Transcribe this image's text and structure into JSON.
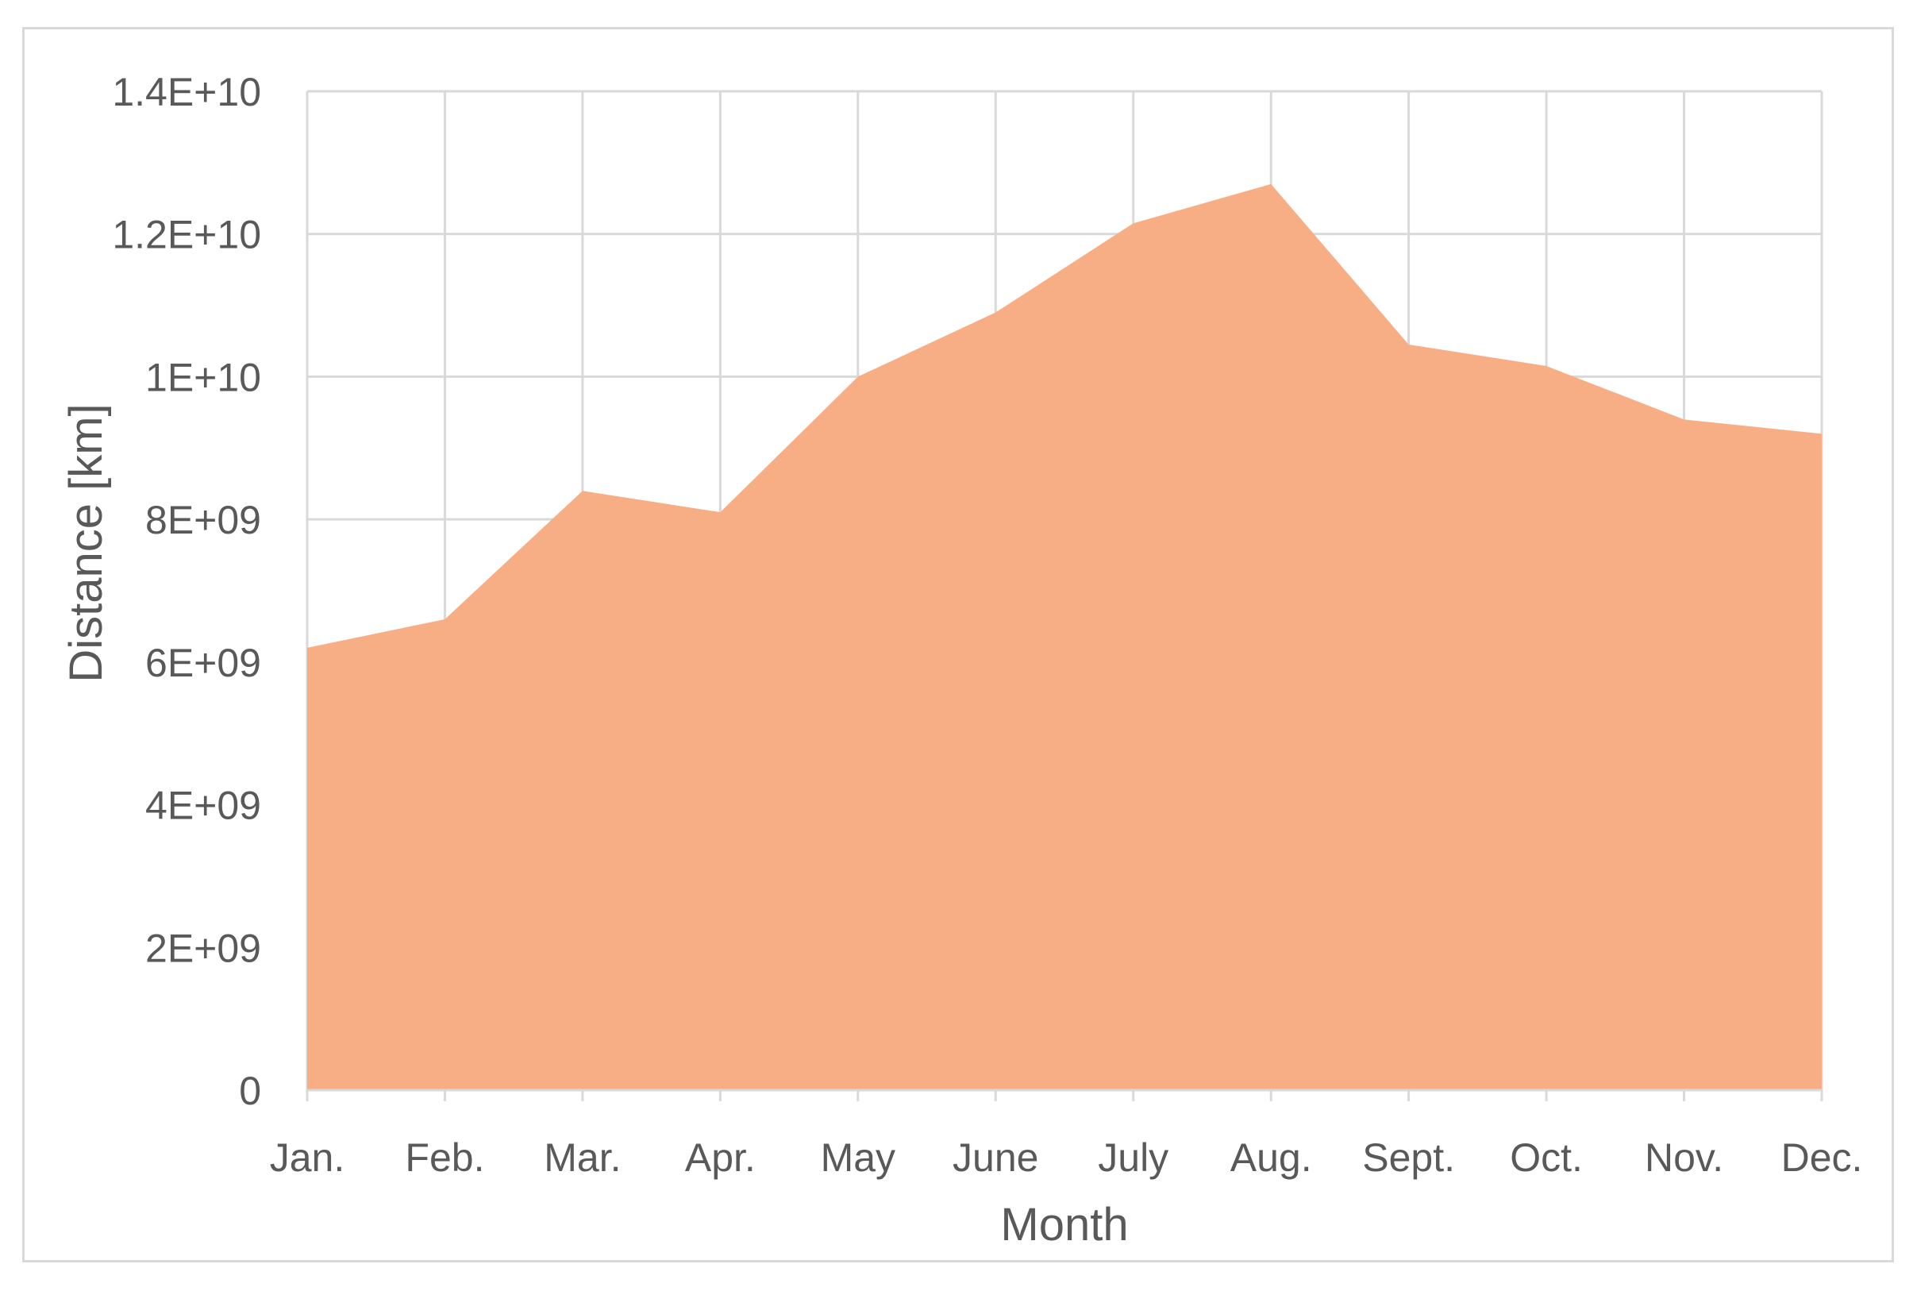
{
  "chart_data": {
    "type": "area",
    "xlabel": "Month",
    "ylabel": "Distance [km]",
    "categories": [
      "Jan.",
      "Feb.",
      "Mar.",
      "Apr.",
      "May",
      "June",
      "July",
      "Aug.",
      "Sept.",
      "Oct.",
      "Nov.",
      "Dec."
    ],
    "series": [
      {
        "values": [
          6200000000,
          6600000000,
          8400000000,
          8100000000,
          10000000000,
          10900000000,
          12150000000,
          12700000000,
          10450000000,
          10150000000,
          9400000000,
          9200000000
        ]
      }
    ],
    "ylim": [
      0,
      14000000000
    ],
    "yticks": [
      0,
      2000000000,
      4000000000,
      6000000000,
      8000000000,
      10000000000,
      12000000000,
      14000000000
    ],
    "ytick_labels": [
      "0",
      "2E+09",
      "4E+09",
      "6E+09",
      "8E+09",
      "1E+10",
      "1.2E+10",
      "1.4E+10"
    ],
    "grid": true,
    "legend": "none",
    "colors": {
      "fill": "#f8ae85",
      "grid": "#d9d9d9",
      "axis_line": "#d9d9d9",
      "text": "#595959",
      "frame": "#d9d9d9"
    }
  }
}
